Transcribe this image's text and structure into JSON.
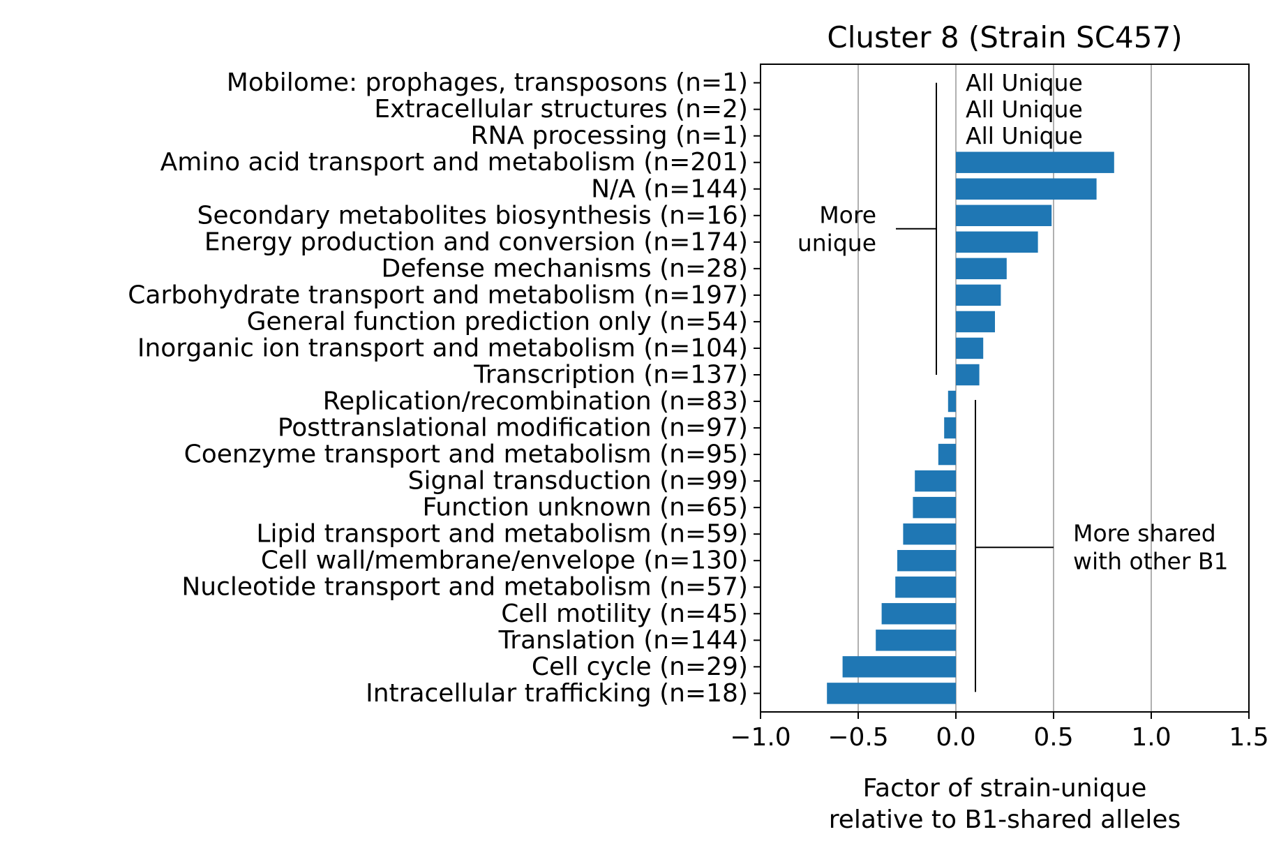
{
  "chart_data": {
    "type": "bar",
    "orientation": "horizontal",
    "title": "Cluster 8 (Strain SC457)",
    "xlabel_lines": [
      "Factor of strain-unique",
      "relative to B1-shared alleles"
    ],
    "ylabel": "",
    "xlim": [
      -1.0,
      1.5
    ],
    "x_ticks": [
      -1.0,
      -0.5,
      0.0,
      0.5,
      1.0,
      1.5
    ],
    "x_tick_labels": [
      "−1.0",
      "−0.5",
      "0.0",
      "0.5",
      "1.0",
      "1.5"
    ],
    "grid": "vertical",
    "bar_color": "#1f77b4",
    "categories": [
      "Mobilome: prophages, transposons (n=1)",
      "Extracellular structures (n=2)",
      "RNA processing (n=1)",
      "Amino acid transport and metabolism (n=201)",
      "N/A (n=144)",
      "Secondary metabolites biosynthesis (n=16)",
      "Energy production and conversion (n=174)",
      "Defense mechanisms (n=28)",
      "Carbohydrate transport and metabolism (n=197)",
      "General function prediction only (n=54)",
      "Inorganic ion transport and metabolism (n=104)",
      "Transcription (n=137)",
      "Replication/recombination (n=83)",
      "Posttranslational modification (n=97)",
      "Coenzyme transport and metabolism (n=95)",
      "Signal transduction (n=99)",
      "Function unknown (n=65)",
      "Lipid transport and metabolism (n=59)",
      "Cell wall/membrane/envelope (n=130)",
      "Nucleotide transport and metabolism (n=57)",
      "Cell motility (n=45)",
      "Translation (n=144)",
      "Cell cycle (n=29)",
      "Intracellular trafficking (n=18)"
    ],
    "values": [
      null,
      null,
      null,
      0.81,
      0.72,
      0.49,
      0.42,
      0.26,
      0.23,
      0.2,
      0.14,
      0.12,
      -0.04,
      -0.06,
      -0.09,
      -0.21,
      -0.22,
      -0.27,
      -0.3,
      -0.31,
      -0.38,
      -0.41,
      -0.58,
      -0.66
    ],
    "value_annotations": [
      "All Unique",
      "All Unique",
      "All Unique"
    ],
    "annotations": {
      "more_unique": [
        "More",
        "unique"
      ],
      "more_shared": [
        "More shared",
        "with other B1"
      ]
    }
  }
}
